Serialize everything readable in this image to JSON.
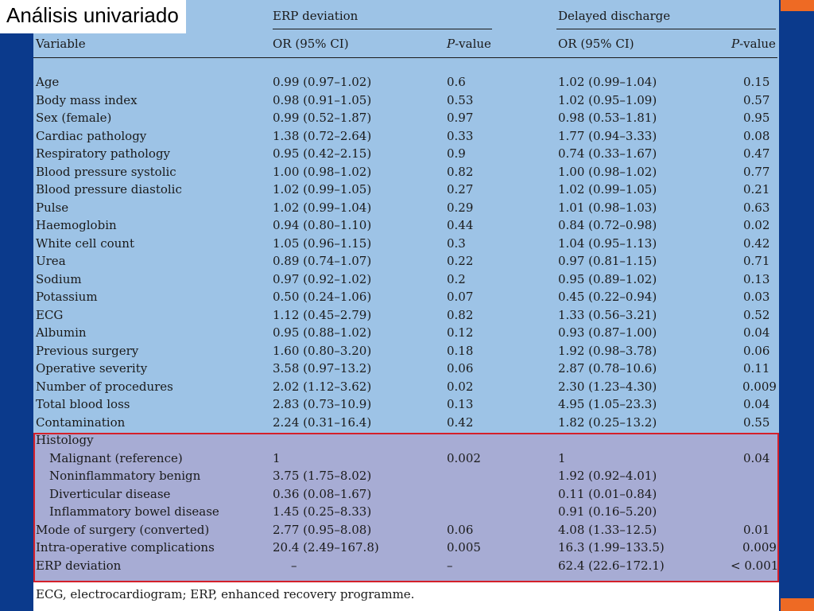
{
  "title": "Análisis univariado",
  "headers": {
    "group_erp": "ERP deviation",
    "group_delayed": "Delayed discharge",
    "variable": "Variable",
    "or_ci_1": "OR (95% CI)",
    "pvalue_1_p": "P",
    "pvalue_1_rest": "-value",
    "or_ci_2": "OR (95% CI)",
    "pvalue_2_p": "P",
    "pvalue_2_rest": "-value"
  },
  "rows": [
    {
      "variable": "Age",
      "erp_or": "0.99 (0.97–1.02)",
      "erp_p": "0.6",
      "dd_or": "1.02 (0.99–1.04)",
      "dd_p": "0.15"
    },
    {
      "variable": "Body mass index",
      "erp_or": "0.98 (0.91–1.05)",
      "erp_p": "0.53",
      "dd_or": "1.02 (0.95–1.09)",
      "dd_p": "0.57"
    },
    {
      "variable": "Sex (female)",
      "erp_or": "0.99 (0.52–1.87)",
      "erp_p": "0.97",
      "dd_or": "0.98 (0.53–1.81)",
      "dd_p": "0.95"
    },
    {
      "variable": "Cardiac pathology",
      "erp_or": "1.38 (0.72–2.64)",
      "erp_p": "0.33",
      "dd_or": "1.77 (0.94–3.33)",
      "dd_p": "0.08"
    },
    {
      "variable": "Respiratory pathology",
      "erp_or": "0.95 (0.42–2.15)",
      "erp_p": "0.9",
      "dd_or": "0.74 (0.33–1.67)",
      "dd_p": "0.47"
    },
    {
      "variable": "Blood pressure systolic",
      "erp_or": "1.00 (0.98–1.02)",
      "erp_p": "0.82",
      "dd_or": "1.00 (0.98–1.02)",
      "dd_p": "0.77"
    },
    {
      "variable": "Blood pressure diastolic",
      "erp_or": "1.02 (0.99–1.05)",
      "erp_p": "0.27",
      "dd_or": "1.02 (0.99–1.05)",
      "dd_p": "0.21"
    },
    {
      "variable": "Pulse",
      "erp_or": "1.02 (0.99–1.04)",
      "erp_p": "0.29",
      "dd_or": "1.01 (0.98–1.03)",
      "dd_p": "0.63"
    },
    {
      "variable": "Haemoglobin",
      "erp_or": "0.94 (0.80–1.10)",
      "erp_p": "0.44",
      "dd_or": "0.84 (0.72–0.98)",
      "dd_p": "0.02"
    },
    {
      "variable": "White cell count",
      "erp_or": "1.05 (0.96–1.15)",
      "erp_p": "0.3",
      "dd_or": "1.04 (0.95–1.13)",
      "dd_p": "0.42"
    },
    {
      "variable": "Urea",
      "erp_or": "0.89 (0.74–1.07)",
      "erp_p": "0.22",
      "dd_or": "0.97 (0.81–1.15)",
      "dd_p": "0.71"
    },
    {
      "variable": "Sodium",
      "erp_or": "0.97 (0.92–1.02)",
      "erp_p": "0.2",
      "dd_or": "0.95 (0.89–1.02)",
      "dd_p": "0.13"
    },
    {
      "variable": "Potassium",
      "erp_or": "0.50 (0.24–1.06)",
      "erp_p": "0.07",
      "dd_or": "0.45 (0.22–0.94)",
      "dd_p": "0.03"
    },
    {
      "variable": "ECG",
      "erp_or": "1.12 (0.45–2.79)",
      "erp_p": "0.82",
      "dd_or": "1.33 (0.56–3.21)",
      "dd_p": "0.52"
    },
    {
      "variable": "Albumin",
      "erp_or": "0.95 (0.88–1.02)",
      "erp_p": "0.12",
      "dd_or": "0.93 (0.87–1.00)",
      "dd_p": "0.04"
    },
    {
      "variable": "Previous surgery",
      "erp_or": "1.60 (0.80–3.20)",
      "erp_p": "0.18",
      "dd_or": "1.92 (0.98–3.78)",
      "dd_p": "0.06"
    },
    {
      "variable": "Operative severity",
      "erp_or": "3.58 (0.97–13.2)",
      "erp_p": "0.06",
      "dd_or": "2.87 (0.78–10.6)",
      "dd_p": "0.11"
    },
    {
      "variable": "Number of procedures",
      "erp_or": "2.02 (1.12–3.62)",
      "erp_p": "0.02",
      "dd_or": "2.30 (1.23–4.30)",
      "dd_p": "0.009"
    },
    {
      "variable": "Total blood loss",
      "erp_or": "2.83 (0.73–10.9)",
      "erp_p": "0.13",
      "dd_or": "4.95 (1.05–23.3)",
      "dd_p": "0.04"
    },
    {
      "variable": "Contamination",
      "erp_or": "2.24 (0.31–16.4)",
      "erp_p": "0.42",
      "dd_or": "1.82 (0.25–13.2)",
      "dd_p": "0.55"
    },
    {
      "variable": "Histology",
      "erp_or": "",
      "erp_p": "",
      "dd_or": "",
      "dd_p": ""
    },
    {
      "variable": "Malignant (reference)",
      "erp_or": "1",
      "erp_p": "0.002",
      "dd_or": "1",
      "dd_p": "0.04"
    },
    {
      "variable": "Noninflammatory benign",
      "erp_or": "3.75 (1.75–8.02)",
      "erp_p": "",
      "dd_or": "1.92 (0.92–4.01)",
      "dd_p": ""
    },
    {
      "variable": "Diverticular disease",
      "erp_or": "0.36 (0.08–1.67)",
      "erp_p": "",
      "dd_or": "0.11 (0.01–0.84)",
      "dd_p": ""
    },
    {
      "variable": "Inflammatory bowel disease",
      "erp_or": "1.45 (0.25–8.33)",
      "erp_p": "",
      "dd_or": "0.91 (0.16–5.20)",
      "dd_p": ""
    },
    {
      "variable": "Mode of surgery (converted)",
      "erp_or": "2.77 (0.95–8.08)",
      "erp_p": "0.06",
      "dd_or": "4.08 (1.33–12.5)",
      "dd_p": "0.01"
    },
    {
      "variable": "Intra-operative complications",
      "erp_or": "20.4 (2.49–167.8)",
      "erp_p": "0.005",
      "dd_or": "16.3 (1.99–133.5)",
      "dd_p": "0.009"
    },
    {
      "variable": "ERP deviation",
      "erp_or": "–",
      "erp_p": "–",
      "dd_or": "62.4 (22.6–172.1)",
      "dd_p": "< 0.001"
    }
  ],
  "footnote": "ECG, electrocardiogram; ERP, enhanced recovery programme.",
  "colors": {
    "table_background": "#9dc3e6",
    "highlight_background": "#a7acd4",
    "highlight_border": "#d4202a",
    "side_bands": "#0b3a8c",
    "accent": "#ee6a24"
  }
}
